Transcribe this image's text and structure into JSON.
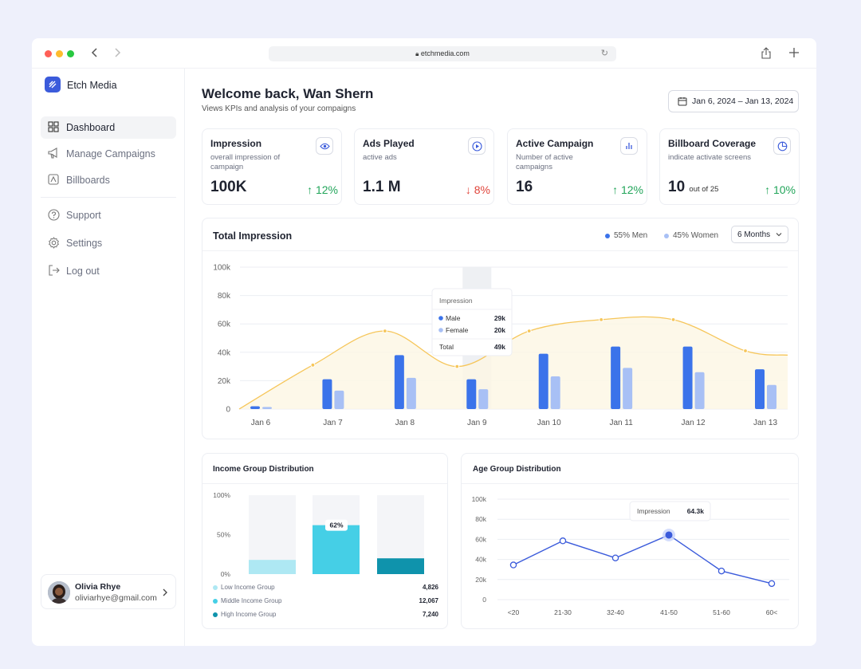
{
  "browser": {
    "url": "etchmedia.com"
  },
  "brand": {
    "name": "Etch Media"
  },
  "nav": [
    {
      "label": "Dashboard",
      "icon": "grid-icon",
      "active": true
    },
    {
      "label": "Manage Campaigns",
      "icon": "megaphone-icon"
    },
    {
      "label": "Billboards",
      "icon": "billboard-icon"
    },
    {
      "label": "Support",
      "icon": "help-circle-icon"
    },
    {
      "label": "Settings",
      "icon": "gear-icon"
    },
    {
      "label": "Log out",
      "icon": "logout-icon"
    }
  ],
  "user": {
    "name": "Olivia Rhye",
    "email": "oliviarhye@gmail.com"
  },
  "header": {
    "title": "Welcome back, Wan Shern",
    "subtitle": "Views KPIs and analysis of your compaigns",
    "date_range": "Jan 6, 2024 – Jan 13, 2024"
  },
  "kpis": [
    {
      "title": "Impression",
      "subtitle": "overall impression of campaign",
      "value": "100K",
      "value_suffix": "",
      "change": "↑ 12%",
      "trend": "up",
      "icon": "eye-icon"
    },
    {
      "title": "Ads Played",
      "subtitle": "active ads",
      "value": "1.1 M",
      "value_suffix": "",
      "change": "↓ 8%",
      "trend": "down",
      "icon": "play-circle-icon"
    },
    {
      "title": "Active Campaign",
      "subtitle": "Number of active campaigns",
      "value": "16",
      "value_suffix": "",
      "change": "↑ 12%",
      "trend": "up",
      "icon": "bar-chart-icon"
    },
    {
      "title": "Billboard Coverage",
      "subtitle": "indicate activate screens",
      "value": "10",
      "value_suffix": "out of 25",
      "change": "↑ 10%",
      "trend": "up",
      "icon": "pie-chart-icon"
    }
  ],
  "total_impression": {
    "title": "Total Impression",
    "legend_men": "55% Men",
    "legend_women": "45% Women",
    "period": "6 Months",
    "tooltip": {
      "title": "Impression",
      "male_label": "Male",
      "male_value": "29k",
      "female_label": "Female",
      "female_value": "20k",
      "total_label": "Total",
      "total_value": "49k"
    }
  },
  "income": {
    "title": "Income Group Distribution",
    "badge": "62%",
    "legend": [
      {
        "label": "Low Income Group",
        "value": "4,826",
        "color": "#aee8f3"
      },
      {
        "label": "Middle Income Group",
        "value": "12,067",
        "color": "#45cfe6"
      },
      {
        "label": "High Income Group",
        "value": "7,240",
        "color": "#0f93ac"
      }
    ]
  },
  "age": {
    "title": "Age Group Distribution",
    "tooltip_label": "Impression",
    "tooltip_value": "64.3k"
  },
  "chart_data": [
    {
      "type": "bar",
      "title": "Total Impression",
      "categories": [
        "Jan 6",
        "Jan 7",
        "Jan 8",
        "Jan 9",
        "Jan 10",
        "Jan 11",
        "Jan 12",
        "Jan 13"
      ],
      "series": [
        {
          "name": "Male",
          "values": [
            2,
            21,
            38,
            21,
            39,
            44,
            44,
            28
          ],
          "color": "#3b73ea"
        },
        {
          "name": "Female",
          "values": [
            1.5,
            13,
            22,
            14,
            23,
            29,
            26,
            17
          ],
          "color": "#a8c0f5"
        },
        {
          "name": "Impression",
          "type": "line",
          "values": [
            0,
            31,
            55,
            30,
            55,
            63,
            63,
            41
          ],
          "color": "#f6c65a"
        }
      ],
      "yticks": [
        "0",
        "20k",
        "40k",
        "60k",
        "80k",
        "100k"
      ],
      "ylim": [
        0,
        100
      ],
      "grid": true
    },
    {
      "type": "bar",
      "title": "Income Group Distribution",
      "categories": [
        "Low Income Group",
        "Middle Income Group",
        "High Income Group"
      ],
      "values": [
        18,
        62,
        20
      ],
      "yticks": [
        "0%",
        "50%",
        "100%"
      ],
      "ylim": [
        0,
        100
      ]
    },
    {
      "type": "line",
      "title": "Age Group Distribution",
      "categories": [
        "<20",
        "21-30",
        "32-40",
        "41-50",
        "51-60",
        "60<"
      ],
      "values": [
        34.5,
        58.5,
        41.5,
        64.3,
        28.5,
        16
      ],
      "yticks": [
        "0",
        "20k",
        "40k",
        "60k",
        "80k",
        "100k"
      ],
      "ylim": [
        0,
        100
      ],
      "color": "#3b5bdb"
    }
  ]
}
